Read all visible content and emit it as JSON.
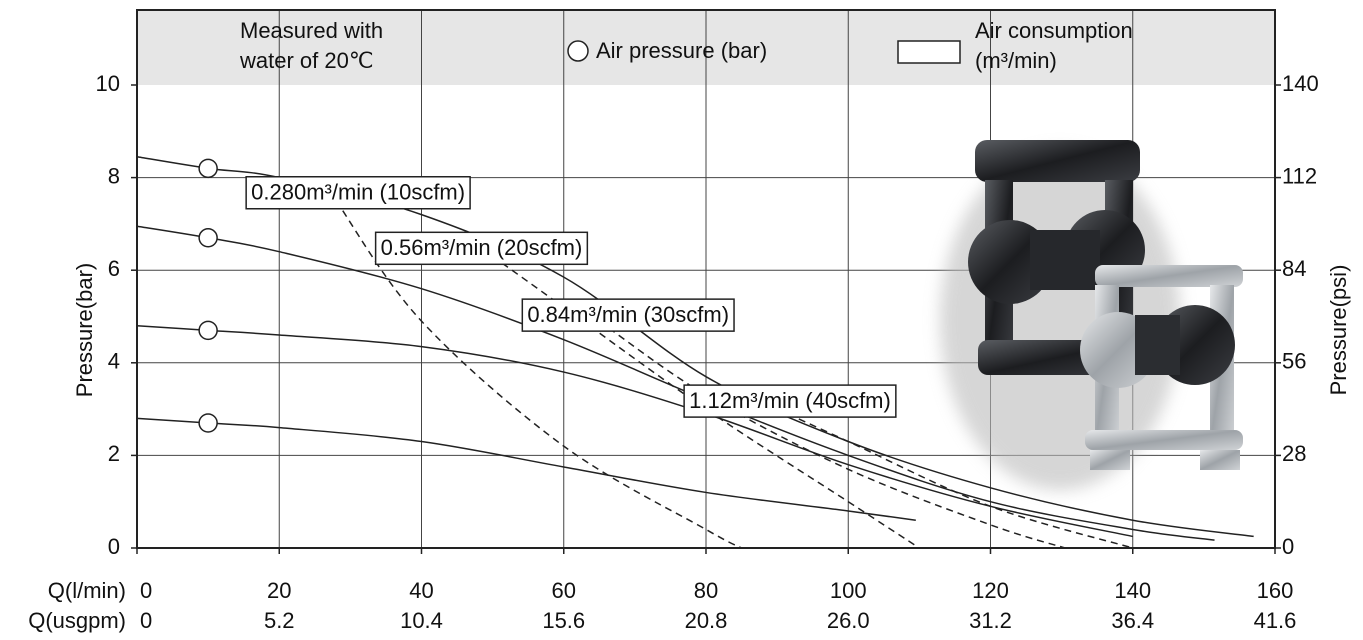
{
  "chart_data": {
    "type": "line",
    "legend": {
      "note": [
        "Measured with",
        "water of 20℃"
      ],
      "pressure": "Air pressure (bar)",
      "consumption": [
        "Air consumption",
        "(m³/min)"
      ]
    },
    "ylabel": "Pressure(bar)",
    "y2label": "Pressure(psi)",
    "xlabel": "Q(l/min)",
    "x2label": "Q(usgpm)",
    "xlim": [
      0,
      160
    ],
    "xticks": [
      0,
      20,
      40,
      60,
      80,
      100,
      120,
      140,
      160
    ],
    "x2lim": [
      0,
      41.6
    ],
    "x2ticks": [
      0,
      5.2,
      10.4,
      15.6,
      20.8,
      {
        "value": 26,
        "label": "26.0"
      },
      31.2,
      36.4,
      41.6
    ],
    "ylim": [
      0,
      10
    ],
    "yticks": [
      0,
      2,
      4,
      6,
      8,
      10
    ],
    "y2lim": [
      0,
      140
    ],
    "y2ticks": [
      0,
      28,
      56,
      84,
      112,
      140
    ],
    "grid": true,
    "color": "#222222",
    "series": [
      {
        "style": "solid",
        "x": [
          0,
          10,
          20,
          40,
          60,
          80,
          100,
          120,
          140,
          157
        ],
        "values": [
          8.45,
          8.2,
          8.0,
          7.2,
          5.85,
          3.7,
          2.3,
          1.3,
          0.6,
          0.25
        ]
      },
      {
        "style": "solid",
        "x": [
          0,
          10,
          20,
          40,
          60,
          80,
          100,
          120,
          140,
          151.5
        ],
        "values": [
          6.95,
          6.7,
          6.4,
          5.6,
          4.5,
          3.2,
          2.0,
          1.0,
          0.4,
          0.17
        ]
      },
      {
        "style": "solid",
        "x": [
          0,
          10,
          20,
          40,
          60,
          80,
          100,
          120,
          140
        ],
        "values": [
          4.8,
          4.7,
          4.6,
          4.35,
          3.8,
          2.9,
          1.8,
          0.9,
          0.25
        ]
      },
      {
        "style": "solid",
        "x": [
          0,
          10,
          20,
          40,
          60,
          80,
          100,
          109.5
        ],
        "values": [
          2.8,
          2.7,
          2.6,
          2.3,
          1.75,
          1.2,
          0.8,
          0.6
        ]
      },
      {
        "style": "dashed",
        "name": "0.280m³/min (10scfm)",
        "x": [
          28,
          40,
          60,
          80,
          85
        ],
        "values": [
          7.5,
          4.9,
          2.2,
          0.4,
          0
        ]
      },
      {
        "style": "dashed",
        "name": "0.56m³/min (20scfm)",
        "x": [
          50,
          60,
          80,
          100,
          110
        ],
        "values": [
          6.3,
          5.2,
          3.0,
          1.0,
          0
        ]
      },
      {
        "style": "dashed",
        "name": "0.84m³/min (30scfm)",
        "x": [
          65,
          80,
          100,
          120,
          130.5
        ],
        "values": [
          4.9,
          3.3,
          1.7,
          0.5,
          0
        ]
      },
      {
        "style": "dashed",
        "name": "1.12m³/min (40scfm)",
        "x": [
          90,
          100,
          120,
          140
        ],
        "values": [
          3.0,
          2.3,
          0.9,
          0
        ]
      }
    ],
    "pressure_markers": {
      "x": [
        10,
        10,
        10,
        10
      ],
      "y": [
        8.2,
        6.7,
        4.7,
        2.7
      ]
    }
  }
}
